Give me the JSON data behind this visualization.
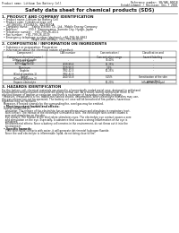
{
  "title": "Safety data sheet for chemical products (SDS)",
  "header_left": "Product name: Lithium Ion Battery Cell",
  "header_right_line1": "Reference number: SB/SA6-00018",
  "header_right_line2": "Establishment / Revision: Dec.7 2010",
  "section1_title": "1. PRODUCT AND COMPANY IDENTIFICATION",
  "section1_lines": [
    "  • Product name: Lithium Ion Battery Cell",
    "  • Product code: Cylindrical-type cell",
    "      SY-18650U, SY-18650L, SY-18650A",
    "  • Company name:    Sanyo Electric Co., Ltd., Mobile Energy Company",
    "  • Address:            200-1  Kannonyama, Sumoto City, Hyogo, Japan",
    "  • Telephone number:   +81-799-26-4111",
    "  • Fax number:   +81-799-26-4129",
    "  • Emergency telephone number (daytime): +81-799-26-3962",
    "                                 (Night and holiday): +81-799-26-4121"
  ],
  "section2_title": "2. COMPOSITION / INFORMATION ON INGREDIENTS",
  "section2_lines": [
    "  • Substance or preparation: Preparation",
    "  • Information about the chemical nature of product:"
  ],
  "col_headers": [
    "Component /\nComponent-chemical name /\nSeverer name",
    "CAS number",
    "Concentration /\nConcentration range",
    "Classification and\nhazard labeling"
  ],
  "table_rows": [
    [
      "Lithium cobalt oxide\n(LiMnxCoyNizO2)",
      "-",
      "30-40%",
      "-"
    ],
    [
      "Iron",
      "7439-89-6",
      "15-25%",
      "-"
    ],
    [
      "Aluminum",
      "7429-90-5",
      "2-5%",
      "-"
    ],
    [
      "Graphite\n(Kind of graphite-1)\n(Kind of graphite-2)",
      "7782-42-5\n7782-42-5",
      "10-25%",
      "-"
    ],
    [
      "Copper",
      "7440-50-8",
      "5-15%",
      "Sensitization of the skin\ngroup No.2"
    ],
    [
      "Organic electrolyte",
      "-",
      "10-20%",
      "Inflammatory liquid"
    ]
  ],
  "section3_title": "3. HAZARDS IDENTIFICATION",
  "section3_lines": [
    "For the battery cell, chemical materials are stored in a hermetically sealed metal case, designed to withstand",
    "temperatures and pressures encountered during normal use. As a result, during normal use, there is no",
    "physical danger of ignition or explosion and there is no danger of hazardous materials leakage.",
    "  However, if exposed to a fire, added mechanical shocks, decomposed, when electrolyte mistakes may use,",
    "the gas release can not be operated. The battery cell case will be breached of fire-potions, hazardous",
    "materials may be released.",
    "  Moreover, if heated strongly by the surrounding fire, sorel gas may be emitted."
  ],
  "section3_sub1": "  • Most important hazard and effects:",
  "section3_sub1_body": [
    "Human health effects:",
    "  Inhalation: The release of the electrolyte has an anesthesia action and stimulates in respiratory tract.",
    "  Skin contact: The release of the electrolyte stimulates a skin. The electrolyte skin contact causes a",
    "  sore and stimulation on the skin.",
    "  Eye contact: The release of the electrolyte stimulates eyes. The electrolyte eye contact causes a sore",
    "  and stimulation on the eye. Especially, a substance that causes a strong inflammation of the eye is",
    "  contained.",
    "  Environmental effects: Since a battery cell remains in the environment, do not throw out it into the",
    "  environment."
  ],
  "section3_sub2": "  • Specific hazards:",
  "section3_sub2_body": [
    "  If the electrolyte contacts with water, it will generate detrimental hydrogen fluoride.",
    "  Since the seal electrolyte is inflammable liquid, do not bring close to fire."
  ],
  "bg_color": "#ffffff",
  "text_color": "#1a1a1a",
  "line_color": "#555555",
  "fs_hdr": 2.2,
  "fs_title": 4.0,
  "fs_sec": 3.0,
  "fs_body": 2.2,
  "fs_table": 2.0
}
